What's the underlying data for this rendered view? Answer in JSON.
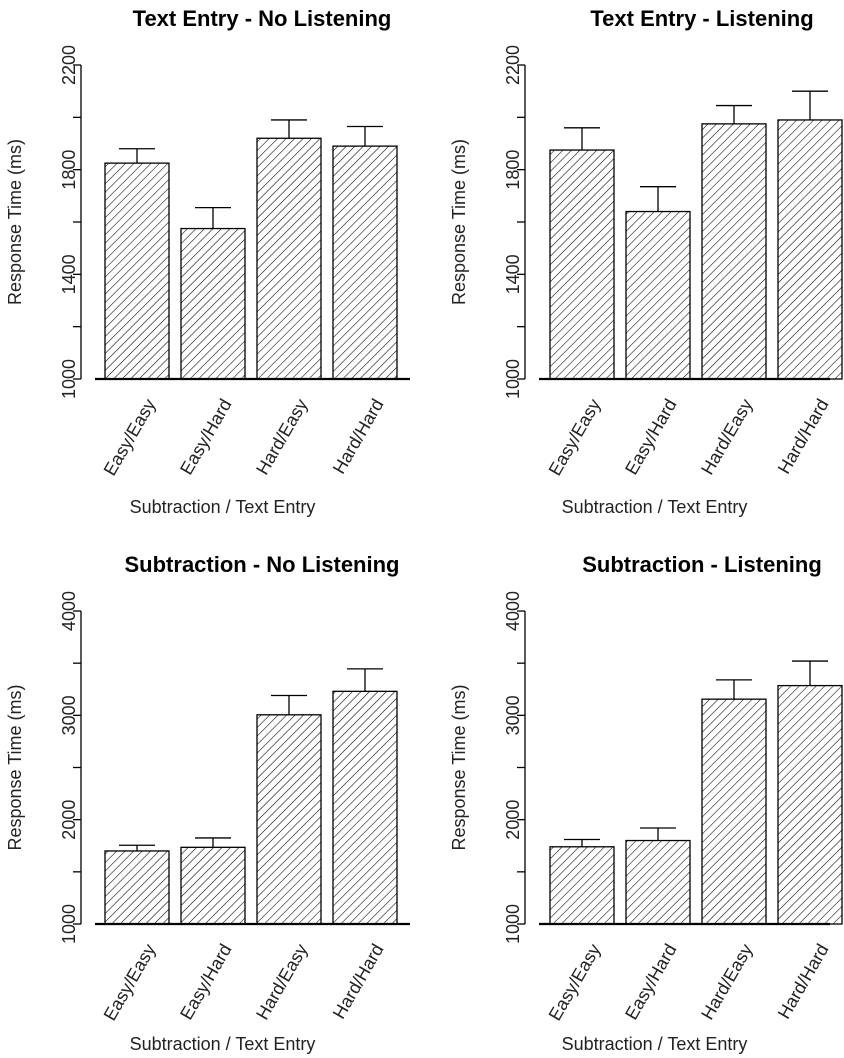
{
  "chart_data": [
    {
      "type": "bar",
      "title": "Text Entry - No Listening",
      "xlabel": "Subtraction / Text Entry",
      "ylabel": "Response Time (ms)",
      "ylim": [
        1000,
        2200
      ],
      "yticks": [
        1000,
        1400,
        1800,
        2200
      ],
      "categories": [
        "Easy/Easy",
        "Easy/Hard",
        "Hard/Easy",
        "Hard/Hard"
      ],
      "values": [
        1825,
        1575,
        1920,
        1890
      ],
      "error_upper": [
        1880,
        1655,
        1990,
        1965
      ],
      "grid": false
    },
    {
      "type": "bar",
      "title": "Text Entry - Listening",
      "xlabel": "Subtraction / Text Entry",
      "ylabel": "Response Time (ms)",
      "ylim": [
        1000,
        2200
      ],
      "yticks": [
        1000,
        1400,
        1800,
        2200
      ],
      "categories": [
        "Easy/Easy",
        "Easy/Hard",
        "Hard/Easy",
        "Hard/Hard"
      ],
      "values": [
        1875,
        1640,
        1975,
        1990
      ],
      "error_upper": [
        1960,
        1735,
        2045,
        2100
      ],
      "grid": false
    },
    {
      "type": "bar",
      "title": "Subtraction - No Listening",
      "xlabel": "Subtraction / Text Entry",
      "ylabel": "Response Time (ms)",
      "ylim": [
        1000,
        4000
      ],
      "yticks": [
        1000,
        2000,
        3000,
        4000
      ],
      "categories": [
        "Easy/Easy",
        "Easy/Hard",
        "Hard/Easy",
        "Hard/Hard"
      ],
      "values": [
        1700,
        1735,
        3005,
        3230
      ],
      "error_upper": [
        1755,
        1825,
        3190,
        3445
      ],
      "grid": false
    },
    {
      "type": "bar",
      "title": "Subtraction - Listening",
      "xlabel": "Subtraction / Text Entry",
      "ylabel": "Response Time (ms)",
      "ylim": [
        1000,
        4000
      ],
      "yticks": [
        1000,
        2000,
        3000,
        4000
      ],
      "categories": [
        "Easy/Easy",
        "Easy/Hard",
        "Hard/Easy",
        "Hard/Hard"
      ],
      "values": [
        1740,
        1800,
        3155,
        3285
      ],
      "error_upper": [
        1810,
        1920,
        3340,
        3520
      ],
      "grid": false
    }
  ]
}
